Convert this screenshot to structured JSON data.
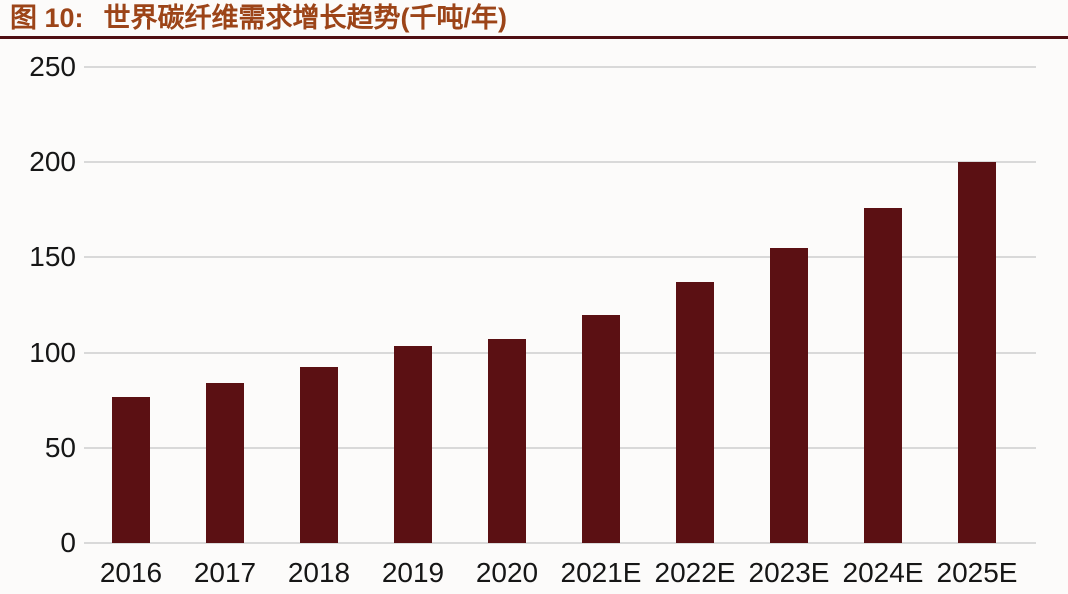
{
  "title": {
    "prefix": "图 10:",
    "text": "世界碳纤维需求增长趋势(千吨/年)"
  },
  "colors": {
    "title_text": "#9c4418",
    "divider": "#4f0e13",
    "bar": "#5b1013",
    "gridline": "#d9d9d9",
    "axis_text": "#161616",
    "background": "#fcfbfa"
  },
  "chart_data": {
    "type": "bar",
    "title": "世界碳纤维需求增长趋势(千吨/年)",
    "unit": "千吨/年",
    "categories": [
      "2016",
      "2017",
      "2018",
      "2019",
      "2020",
      "2021E",
      "2022E",
      "2023E",
      "2024E",
      "2025E"
    ],
    "values": [
      76.5,
      84.2,
      92.6,
      103.7,
      106.9,
      120,
      137,
      155,
      176,
      200
    ],
    "xlabel": "",
    "ylabel": "",
    "ylim": [
      0,
      250
    ],
    "yticks": [
      0,
      50,
      100,
      150,
      200,
      250
    ],
    "grid": true,
    "legend": false,
    "bar_color": "#5b1013"
  }
}
